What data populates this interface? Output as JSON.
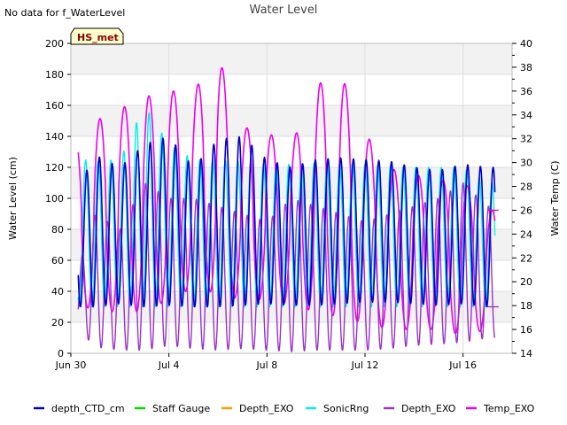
{
  "no_data_text": "No data for f_WaterLevel",
  "station_badge": "HS_met",
  "chart_data": {
    "type": "line",
    "title": "Water Level",
    "ylabel_left": "Water Level (cm)",
    "ylabel_right": "Water Temp (C)",
    "x_tick_labels": [
      "Jun 30",
      "Jul 4",
      "Jul 8",
      "Jul 12",
      "Jul 16"
    ],
    "x_tick_days": [
      0,
      4,
      8,
      12,
      16
    ],
    "xlim_days": [
      0,
      18
    ],
    "ylim_left": [
      0,
      200
    ],
    "ylim_right": [
      14,
      40
    ],
    "y_ticks_left": [
      0,
      20,
      40,
      60,
      80,
      100,
      120,
      140,
      160,
      180,
      200
    ],
    "y_ticks_right": [
      14,
      16,
      18,
      20,
      22,
      24,
      26,
      28,
      30,
      32,
      34,
      36,
      38,
      40
    ],
    "grid": true,
    "legend_position": "bottom",
    "series_start_day": 0.3,
    "series_end_day": 17.3,
    "series": [
      {
        "name": "depth_CTD_cm",
        "color": "#0000cc",
        "axis": "left",
        "cycles_per_day": 1.93,
        "low": [
          30,
          30,
          32,
          30,
          31,
          30,
          30,
          31,
          32,
          31,
          31,
          32,
          33,
          33,
          32,
          31,
          32,
          30
        ],
        "high": [
          100,
          128,
          120,
          135,
          140,
          120,
          138,
          140,
          125,
          120,
          125,
          126,
          125,
          124,
          120,
          118,
          122,
          120
        ]
      },
      {
        "name": "Staff Gauge",
        "color": "#00dd00",
        "axis": "left",
        "values": []
      },
      {
        "name": "Depth_EXO",
        "color": "#ff9900",
        "axis": "left",
        "values": []
      },
      {
        "name": "SonicRng",
        "color": "#00eeee",
        "axis": "left",
        "cycles_per_day": 1.93,
        "low": [
          30,
          30,
          30,
          30,
          30,
          30,
          30,
          30,
          30,
          30,
          30,
          30,
          30,
          30,
          30,
          30,
          30,
          30
        ],
        "high": [
          126,
          124,
          125,
          160,
          135,
          125,
          125,
          124,
          122,
          122,
          123,
          123,
          122,
          121,
          120,
          120,
          120,
          110
        ]
      },
      {
        "name": "Depth_EXO",
        "color": "#9933cc",
        "axis": "left",
        "cycles_per_day": 1.93,
        "low": [
          20,
          4,
          2,
          2,
          5,
          3,
          2,
          3,
          2,
          1,
          2,
          2,
          2,
          3,
          5,
          6,
          7,
          10
        ],
        "high": [
          40,
          90,
          80,
          110,
          100,
          100,
          95,
          90,
          85,
          100,
          95,
          90,
          85,
          90,
          95,
          100,
          110,
          95
        ]
      },
      {
        "name": "Temp_EXO",
        "color": "#ee00ee",
        "axis": "right",
        "cycles_per_day": 1.0,
        "low": [
          18.5,
          17.5,
          17.5,
          17.5,
          18.5,
          19.5,
          19.0,
          18.5,
          18.5,
          18.0,
          17.5,
          17.0,
          16.5,
          16.0,
          16.0,
          16.0,
          15.5,
          16.0
        ],
        "high": [
          31.5,
          33.5,
          34.5,
          35.5,
          36.0,
          36.0,
          39.0,
          33.0,
          32.5,
          31.5,
          36.5,
          37.5,
          32.5,
          29.5,
          29.0,
          28.5,
          28.5,
          26.0
        ]
      }
    ]
  }
}
